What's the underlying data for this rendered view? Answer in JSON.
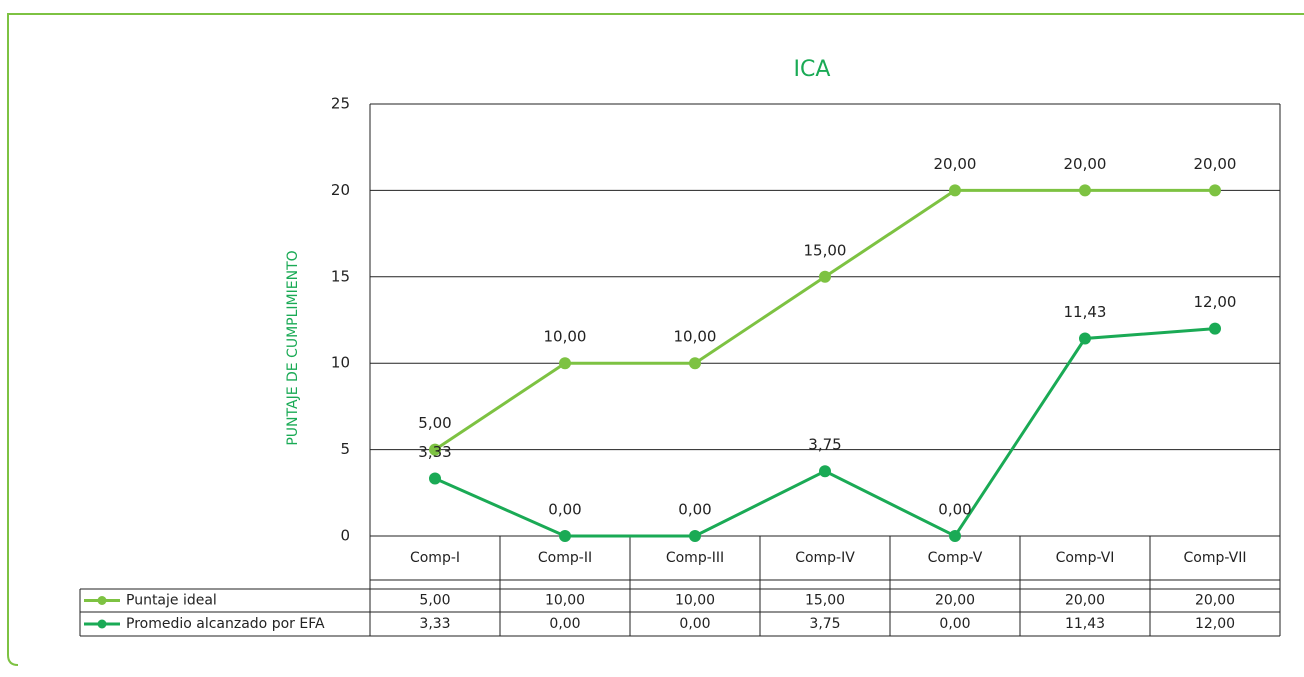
{
  "chart_data": {
    "type": "line",
    "title": "ICA",
    "y_label": "PUNTAJE DE CUMPLIMIENTO",
    "categories": [
      "Comp-I",
      "Comp-II",
      "Comp-III",
      "Comp-IV",
      "Comp-V",
      "Comp-VI",
      "Comp-VII"
    ],
    "series": [
      {
        "name": "Puntaje ideal",
        "color": "#7dc242",
        "values": [
          5,
          10,
          10,
          15,
          20,
          20,
          20
        ],
        "value_labels": [
          "5,00",
          "10,00",
          "10,00",
          "15,00",
          "20,00",
          "20,00",
          "20,00"
        ]
      },
      {
        "name": "Promedio alcanzado por EFA",
        "color": "#1aaa55",
        "values": [
          3.33,
          0,
          0,
          3.75,
          0,
          11.43,
          12
        ],
        "value_labels": [
          "3,33",
          "0,00",
          "0,00",
          "3,75",
          "0,00",
          "11,43",
          "12,00"
        ]
      }
    ],
    "ylim": [
      0,
      25
    ],
    "yticks": [
      0,
      5,
      10,
      15,
      20,
      25
    ],
    "grid": true
  }
}
